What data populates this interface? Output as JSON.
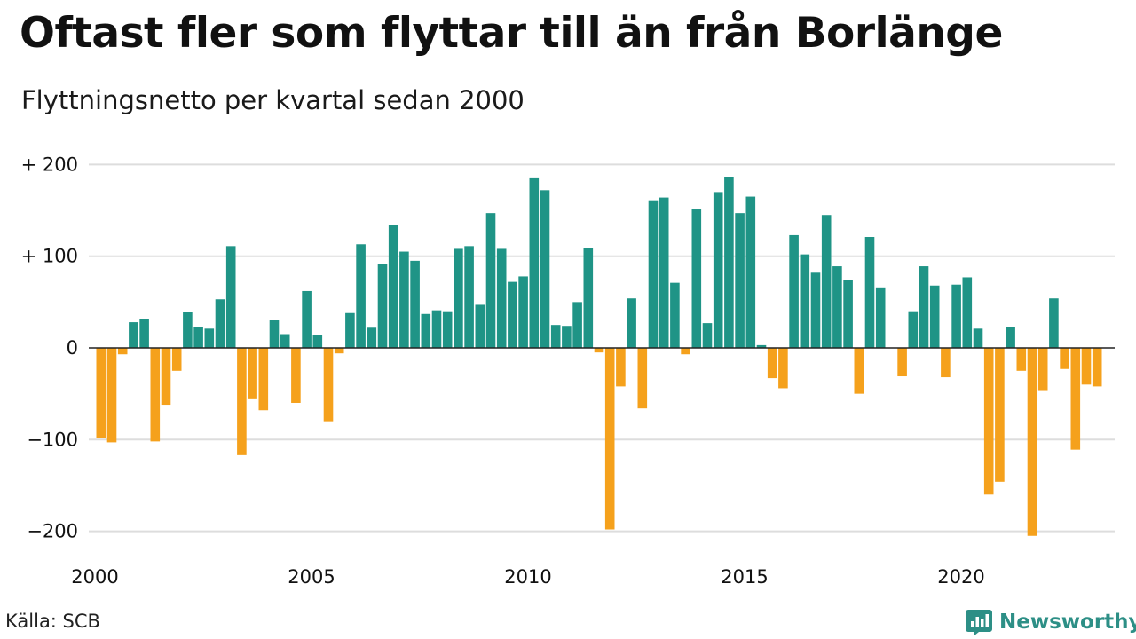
{
  "title": "Oftast fler som flyttar till än från Borlänge",
  "subtitle": "Flyttningsnetto per kvartal sedan 2000",
  "source": "Källa: SCB",
  "brand": "Newsworthy",
  "colors": {
    "positive": "#1f9486",
    "negative": "#f5a11c",
    "grid": "#dddddd",
    "zero_line": "#222222",
    "brand": "#2d8f86"
  },
  "chart_data": {
    "type": "bar",
    "title": "Oftast fler som flyttar till än från Borlänge",
    "subtitle": "Flyttningsnetto per kvartal sedan 2000",
    "xlabel": "",
    "ylabel": "",
    "x_start": "2000 Q1",
    "x_ticks": [
      "2000",
      "2005",
      "2010",
      "2015",
      "2020"
    ],
    "y_ticks": [
      {
        "value": 200,
        "label": "+ 200"
      },
      {
        "value": 100,
        "label": "+ 100"
      },
      {
        "value": 0,
        "label": "0"
      },
      {
        "value": -100,
        "label": "−100"
      },
      {
        "value": -200,
        "label": "−200"
      }
    ],
    "ylim": [
      -210,
      200
    ],
    "grid": true,
    "values": [
      -98,
      -103,
      -7,
      28,
      31,
      -102,
      -62,
      -25,
      39,
      23,
      21,
      53,
      111,
      -117,
      -56,
      -68,
      30,
      15,
      -60,
      62,
      14,
      -80,
      -6,
      38,
      113,
      22,
      91,
      134,
      105,
      95,
      37,
      41,
      40,
      108,
      111,
      47,
      147,
      108,
      72,
      78,
      185,
      172,
      25,
      24,
      50,
      109,
      -5,
      -198,
      -42,
      54,
      -66,
      161,
      164,
      71,
      -7,
      151,
      27,
      170,
      186,
      147,
      165,
      3,
      -33,
      -44,
      123,
      102,
      82,
      145,
      89,
      74,
      -50,
      121,
      66,
      0,
      -31,
      40,
      89,
      68,
      -32,
      69,
      77,
      21,
      -160,
      -146,
      23,
      -25,
      -205,
      -47,
      54,
      -23,
      -111,
      -40,
      -42
    ]
  }
}
